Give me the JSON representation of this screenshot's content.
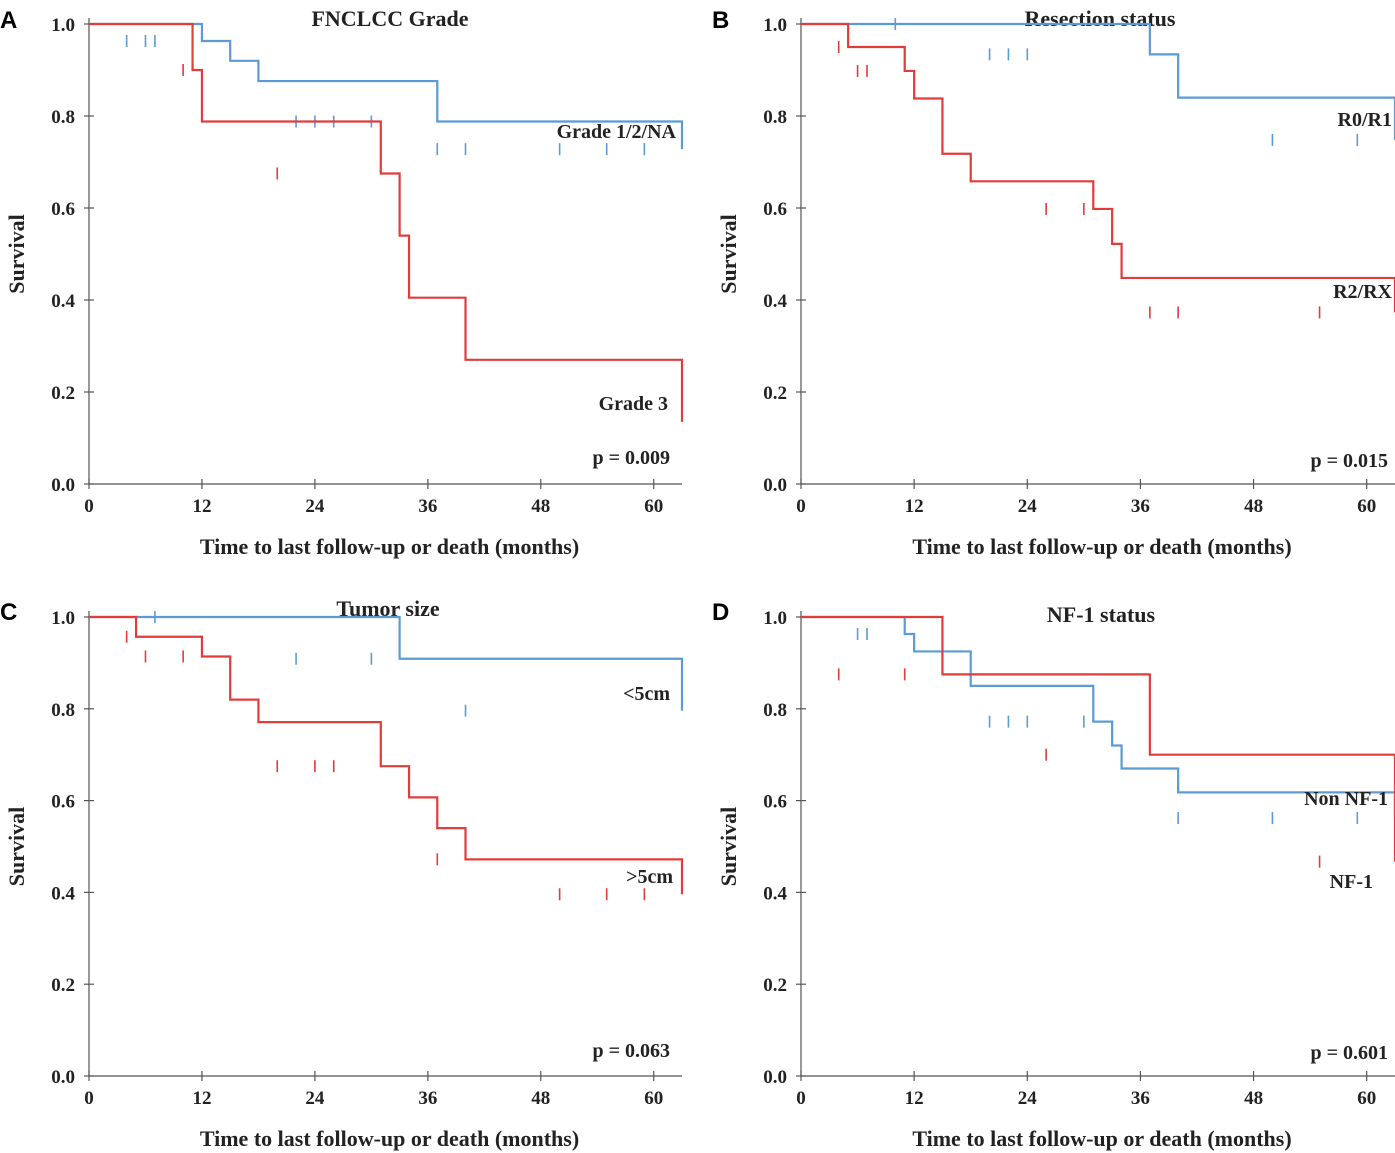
{
  "chart_data": [
    {
      "panel": "A",
      "type": "line",
      "title": "FNCLCC Grade",
      "xlabel": "Time to last follow-up or death (months)",
      "ylabel": "Survival",
      "xlim": [
        0,
        63
      ],
      "ylim": [
        0,
        1.05
      ],
      "x_ticks": [
        "0",
        "12",
        "24",
        "36",
        "48",
        "60"
      ],
      "y_ticks": [
        "0.0",
        "0.2",
        "0.4",
        "0.6",
        "0.8",
        "1.0"
      ],
      "p_value": "p = 0.009",
      "series": [
        {
          "name": "Grade 1/2/NA",
          "color": "#5b9bd5",
          "x": [
            0,
            12,
            15,
            18,
            37,
            63
          ],
          "y": [
            1.0,
            0.963,
            0.92,
            0.876,
            0.788,
            0.728
          ],
          "censored": [
            [
              4,
              0.963
            ],
            [
              6,
              0.963
            ],
            [
              7,
              0.963
            ],
            [
              22,
              0.788
            ],
            [
              24,
              0.788
            ],
            [
              26,
              0.788
            ],
            [
              30,
              0.788
            ],
            [
              37,
              0.728
            ],
            [
              40,
              0.728
            ],
            [
              50,
              0.728
            ],
            [
              55,
              0.728
            ],
            [
              59,
              0.728
            ]
          ]
        },
        {
          "name": "Grade 3",
          "color": "#e03c3c",
          "x": [
            0,
            5,
            11,
            12,
            31,
            33,
            34,
            40,
            63
          ],
          "y": [
            1.0,
            1.0,
            0.9,
            0.788,
            0.675,
            0.54,
            0.405,
            0.27,
            0.135
          ],
          "censored": [
            [
              10,
              0.9
            ],
            [
              20,
              0.675
            ]
          ]
        }
      ]
    },
    {
      "panel": "B",
      "type": "line",
      "title": "Resection status",
      "xlabel": "Time to last follow-up or death (months)",
      "ylabel": "Survival",
      "xlim": [
        0,
        63
      ],
      "ylim": [
        0,
        1.05
      ],
      "x_ticks": [
        "0",
        "12",
        "24",
        "36",
        "48",
        "60"
      ],
      "y_ticks": [
        "0.0",
        "0.2",
        "0.4",
        "0.6",
        "0.8",
        "1.0"
      ],
      "p_value": "p = 0.015",
      "series": [
        {
          "name": "R0/R1",
          "color": "#5b9bd5",
          "x": [
            0,
            18,
            37,
            40,
            63
          ],
          "y": [
            1.0,
            1.0,
            0.934,
            0.84,
            0.748
          ],
          "censored": [
            [
              10,
              1.0
            ],
            [
              20,
              0.934
            ],
            [
              22,
              0.934
            ],
            [
              24,
              0.934
            ],
            [
              50,
              0.748
            ],
            [
              59,
              0.748
            ]
          ]
        },
        {
          "name": "R2/RX",
          "color": "#e03c3c",
          "x": [
            0,
            4,
            5,
            11,
            12,
            15,
            18,
            31,
            33,
            34,
            63
          ],
          "y": [
            1.0,
            1.0,
            0.95,
            0.898,
            0.838,
            0.718,
            0.658,
            0.598,
            0.522,
            0.448,
            0.373
          ],
          "censored": [
            [
              4,
              0.95
            ],
            [
              6,
              0.898
            ],
            [
              7,
              0.898
            ],
            [
              26,
              0.598
            ],
            [
              30,
              0.598
            ],
            [
              37,
              0.373
            ],
            [
              40,
              0.373
            ],
            [
              55,
              0.373
            ]
          ]
        }
      ]
    },
    {
      "panel": "C",
      "type": "line",
      "title": "Tumor size",
      "xlabel": "Time to last follow-up or death (months)",
      "ylabel": "Survival",
      "xlim": [
        0,
        63
      ],
      "ylim": [
        0,
        1.05
      ],
      "x_ticks": [
        "0",
        "12",
        "24",
        "36",
        "48",
        "60"
      ],
      "y_ticks": [
        "0.0",
        "0.2",
        "0.4",
        "0.6",
        "0.8",
        "1.0"
      ],
      "p_value": "p = 0.063",
      "series": [
        {
          "name": "<5cm",
          "color": "#5b9bd5",
          "x": [
            0,
            11,
            33,
            63
          ],
          "y": [
            1.0,
            1.0,
            0.909,
            0.796
          ],
          "censored": [
            [
              7,
              1.0
            ],
            [
              22,
              0.909
            ],
            [
              30,
              0.909
            ],
            [
              40,
              0.796
            ]
          ]
        },
        {
          "name": ">5cm",
          "color": "#e03c3c",
          "x": [
            0,
            4,
            5,
            12,
            15,
            18,
            31,
            34,
            37,
            40,
            63
          ],
          "y": [
            1.0,
            1.0,
            0.957,
            0.914,
            0.82,
            0.771,
            0.675,
            0.607,
            0.54,
            0.472,
            0.396
          ],
          "censored": [
            [
              4,
              0.957
            ],
            [
              6,
              0.914
            ],
            [
              10,
              0.914
            ],
            [
              20,
              0.675
            ],
            [
              24,
              0.675
            ],
            [
              26,
              0.675
            ],
            [
              37,
              0.472
            ],
            [
              50,
              0.396
            ],
            [
              55,
              0.396
            ],
            [
              59,
              0.396
            ]
          ]
        }
      ]
    },
    {
      "panel": "D",
      "type": "line",
      "title": "NF-1 status",
      "xlabel": "Time to last follow-up or death (months)",
      "ylabel": "Survival",
      "xlim": [
        0,
        63
      ],
      "ylim": [
        0,
        1.05
      ],
      "x_ticks": [
        "0",
        "12",
        "24",
        "36",
        "48",
        "60"
      ],
      "y_ticks": [
        "0.0",
        "0.2",
        "0.4",
        "0.6",
        "0.8",
        "1.0"
      ],
      "p_value": "p = 0.601",
      "series": [
        {
          "name": "Non NF-1",
          "color": "#5b9bd5",
          "x": [
            0,
            5,
            11,
            12,
            18,
            31,
            33,
            34,
            40,
            63
          ],
          "y": [
            1.0,
            1.0,
            0.963,
            0.925,
            0.85,
            0.772,
            0.72,
            0.67,
            0.618,
            0.562
          ],
          "censored": [
            [
              6,
              0.963
            ],
            [
              7,
              0.963
            ],
            [
              20,
              0.772
            ],
            [
              22,
              0.772
            ],
            [
              24,
              0.772
            ],
            [
              30,
              0.772
            ],
            [
              40,
              0.562
            ],
            [
              50,
              0.562
            ],
            [
              59,
              0.562
            ]
          ]
        },
        {
          "name": "NF-1",
          "color": "#e03c3c",
          "x": [
            0,
            4,
            15,
            37,
            63
          ],
          "y": [
            1.0,
            1.0,
            0.875,
            0.7,
            0.467
          ],
          "censored": [
            [
              4,
              0.875
            ],
            [
              11,
              0.875
            ],
            [
              26,
              0.7
            ],
            [
              55,
              0.467
            ]
          ]
        }
      ]
    }
  ]
}
